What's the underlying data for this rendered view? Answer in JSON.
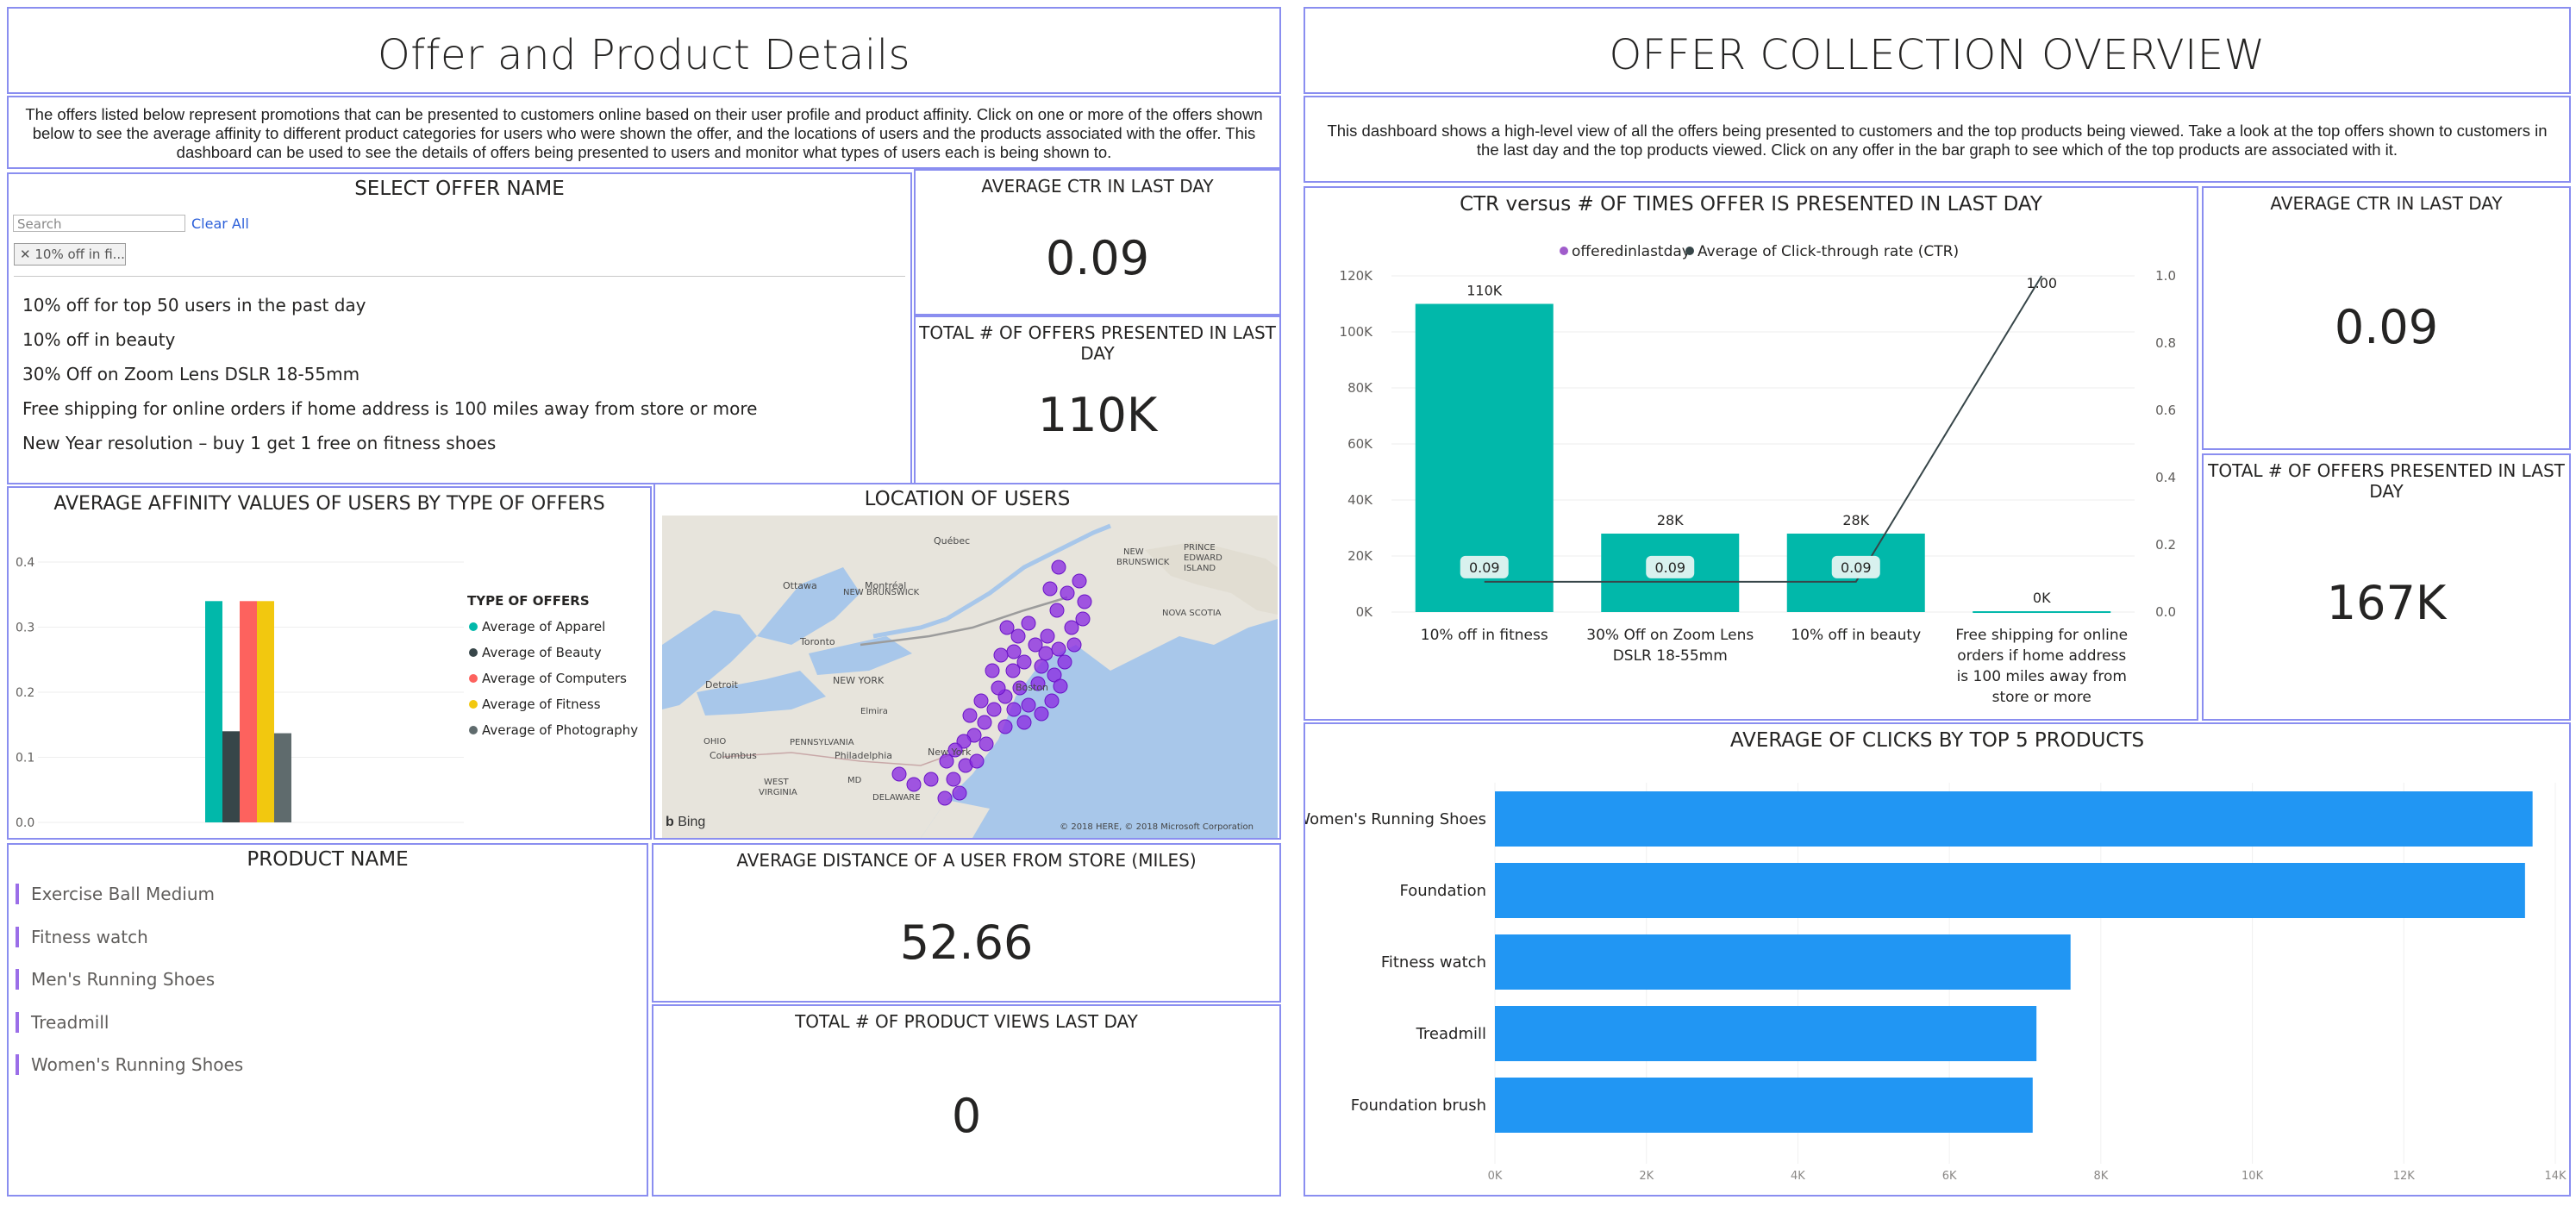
{
  "left": {
    "title": "Offer and Product Details",
    "description": "The offers listed below represent promotions that can be presented to customers online based on their user profile and product affinity. Click on one or more of the offers shown below to see the average affinity to different product categories for users who were shown the offer, and the locations of users and the products associated with the offer. This dashboard can be used to see the details of offers being presented to users and monitor what types of users each is being shown to.",
    "slicer": {
      "title": "SELECT OFFER NAME",
      "search_placeholder": "Search",
      "clear_all": "Clear All",
      "selected_chip": "10% off in fi...",
      "chip_close": "✕",
      "options": [
        "10% off for top 50 users in the past day",
        "10% off in beauty",
        "30% Off on Zoom Lens DSLR 18-55mm",
        "Free shipping for online orders if home address is 100 miles away from store or more",
        "New Year resolution – buy 1 get 1 free on fitness shoes"
      ]
    },
    "card_ctr": {
      "label": "AVERAGE CTR IN LAST DAY",
      "value": "0.09"
    },
    "card_offers": {
      "label": "TOTAL # OF OFFERS PRESENTED IN LAST DAY",
      "value": "110K"
    },
    "affinity_chart": {
      "title": "AVERAGE AFFINITY VALUES OF USERS BY TYPE OF OFFERS"
    },
    "map": {
      "title": "LOCATION OF USERS",
      "bing": "Bing",
      "copyright": "© 2018 HERE, © 2018 Microsoft Corporation"
    },
    "products": {
      "title": "PRODUCT NAME",
      "items": [
        "Exercise Ball Medium",
        "Fitness watch",
        "Men's Running Shoes",
        "Treadmill",
        "Women's Running Shoes"
      ]
    },
    "card_distance": {
      "label": "AVERAGE DISTANCE OF A USER FROM STORE (MILES)",
      "value": "52.66"
    },
    "card_views": {
      "label": "TOTAL # OF PRODUCT VIEWS LAST DAY",
      "value": "0"
    }
  },
  "right": {
    "title": "OFFER COLLECTION OVERVIEW",
    "description": "This dashboard shows a high-level view of all the offers being presented to customers and the top products being viewed. Take a look at the top offers shown to customers in the last day and the top products viewed. Click on any offer in the bar graph to see which of the top products are associated with it.",
    "ctr_chart": {
      "title": "CTR versus # OF TIMES OFFER IS PRESENTED IN LAST DAY"
    },
    "card_ctr": {
      "label": "AVERAGE CTR IN LAST DAY",
      "value": "0.09"
    },
    "card_offers": {
      "label": "TOTAL # OF OFFERS PRESENTED IN LAST DAY",
      "value": "167K"
    },
    "clicks_chart": {
      "title": "AVERAGE OF CLICKS BY TOP 5 PRODUCTS"
    }
  },
  "colors": {
    "border": "#8a8ef0",
    "teal": "#01b8aa",
    "dark": "#374649",
    "red": "#fd625e",
    "yellow": "#f2c80f",
    "gray": "#5f6b6d",
    "blue": "#2196f3",
    "purple": "#8b2be2",
    "link": "#2b5fd9"
  },
  "chart_data": [
    {
      "id": "affinity",
      "type": "bar",
      "title": "AVERAGE AFFINITY VALUES OF USERS BY TYPE OF OFFERS",
      "legend_title": "TYPE OF OFFERS",
      "legend_position": "right",
      "categories": [
        ""
      ],
      "series": [
        {
          "name": "Average of Apparel",
          "values": [
            0.34
          ],
          "color": "#01b8aa"
        },
        {
          "name": "Average of Beauty",
          "values": [
            0.14
          ],
          "color": "#374649"
        },
        {
          "name": "Average of Computers",
          "values": [
            0.34
          ],
          "color": "#fd625e"
        },
        {
          "name": "Average of Fitness",
          "values": [
            0.34
          ],
          "color": "#f2c80f"
        },
        {
          "name": "Average of Photography",
          "values": [
            0.137
          ],
          "color": "#5f6b6d"
        }
      ],
      "yticks": [
        "0.0",
        "0.1",
        "0.2",
        "0.3",
        "0.4"
      ],
      "ylim": [
        0,
        0.4
      ]
    },
    {
      "id": "ctr_combo",
      "type": "bar",
      "title": "CTR versus # OF TIMES OFFER IS PRESENTED IN LAST DAY",
      "legend_position": "top",
      "categories": [
        [
          "10% off in fitness"
        ],
        [
          "30% Off on Zoom Lens",
          "DSLR 18-55mm"
        ],
        [
          "10% off in beauty"
        ],
        [
          "Free shipping for online",
          "orders if home address",
          "is 100 miles away from",
          "store or more"
        ]
      ],
      "series": [
        {
          "name": "offeredinlastday",
          "type": "bar",
          "values": [
            110000,
            28000,
            28000,
            300
          ],
          "labels": [
            "110K",
            "28K",
            "28K",
            "0K"
          ],
          "color": "#01b8aa"
        },
        {
          "name": "Average of Click-through rate (CTR)",
          "type": "line",
          "values": [
            0.09,
            0.09,
            0.09,
            1.0
          ],
          "labels": [
            "0.09",
            "0.09",
            "0.09",
            "1.00"
          ],
          "color": "#374649"
        }
      ],
      "legend_colors": [
        "#a05ccb",
        "#374649"
      ],
      "yticks_left": [
        "0K",
        "20K",
        "40K",
        "60K",
        "80K",
        "100K",
        "120K"
      ],
      "ylim_left": [
        0,
        120000
      ],
      "yticks_right": [
        "0.0",
        "0.2",
        "0.4",
        "0.6",
        "0.8",
        "1.0"
      ],
      "ylim_right": [
        0,
        1.0
      ]
    },
    {
      "id": "clicks",
      "type": "bar",
      "orientation": "horizontal",
      "title": "AVERAGE OF CLICKS BY TOP 5 PRODUCTS",
      "categories": [
        "Women's Running Shoes",
        "Foundation",
        "Fitness watch",
        "Treadmill",
        "Foundation brush"
      ],
      "values": [
        13700,
        13600,
        7600,
        7150,
        7100
      ],
      "xticks": [
        "0K",
        "2K",
        "4K",
        "6K",
        "8K",
        "10K",
        "12K",
        "14K"
      ],
      "xlim": [
        0,
        14000
      ],
      "color": "#2196f3"
    }
  ]
}
